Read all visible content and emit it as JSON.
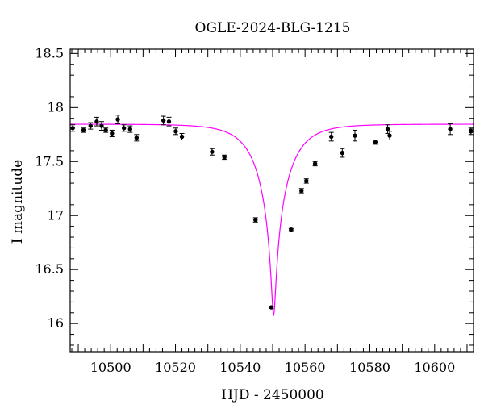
{
  "chart_data": {
    "type": "scatter",
    "title": "OGLE-2024-BLG-1215",
    "xlabel": "HJD - 2450000",
    "ylabel": "I magnitude",
    "xlim": [
      10487.5,
      10612
    ],
    "ylim": [
      18.54,
      15.74
    ],
    "y_inverted": true,
    "grid": false,
    "x_ticks": [
      10500,
      10520,
      10540,
      10560,
      10580,
      10600
    ],
    "x_tick_labels": [
      "10500",
      "10520",
      "10540",
      "10560",
      "10580",
      "10600"
    ],
    "x_minor_step": 2,
    "y_ticks": [
      16,
      16.5,
      17,
      17.5,
      18,
      18.5
    ],
    "y_tick_labels": [
      "16",
      "16.5",
      "17",
      "17.5",
      "18",
      "18.5"
    ],
    "y_minor_step": 0.1,
    "colors": {
      "points": "#000000",
      "model": "#ff00ff",
      "frame": "#000000"
    },
    "series": [
      {
        "kind": "points_with_errors",
        "x": [
          10488.3,
          10491.6,
          10493.8,
          10495.7,
          10497.2,
          10498.5,
          10500.4,
          10502.2,
          10504.1,
          10506.0,
          10508.0,
          10516.3,
          10518.0,
          10520.1,
          10522.0,
          10531.3,
          10535.1,
          10544.7,
          10549.6,
          10555.7,
          10558.9,
          10560.4,
          10563.1,
          10568.1,
          10571.5,
          10575.4,
          10581.7,
          10585.5,
          10586.1,
          10604.8,
          10611.2
        ],
        "y": [
          17.81,
          17.79,
          17.83,
          17.87,
          17.83,
          17.79,
          17.76,
          17.89,
          17.81,
          17.8,
          17.72,
          17.88,
          17.87,
          17.78,
          17.73,
          17.59,
          17.54,
          16.96,
          16.15,
          16.87,
          17.23,
          17.32,
          17.48,
          17.73,
          17.58,
          17.74,
          17.68,
          17.8,
          17.74,
          17.8,
          17.78
        ],
        "err": [
          0.03,
          0.02,
          0.03,
          0.04,
          0.04,
          0.02,
          0.03,
          0.04,
          0.03,
          0.03,
          0.03,
          0.04,
          0.04,
          0.03,
          0.03,
          0.03,
          0.02,
          0.02,
          0.01,
          0.01,
          0.02,
          0.02,
          0.02,
          0.04,
          0.04,
          0.05,
          0.02,
          0.04,
          0.04,
          0.05,
          0.03
        ]
      },
      {
        "kind": "model_curve",
        "t0": 10550.3,
        "tE": 9.5,
        "u0": 0.06,
        "baseline_mag": 17.846,
        "peak_mag": 16.08
      }
    ]
  }
}
